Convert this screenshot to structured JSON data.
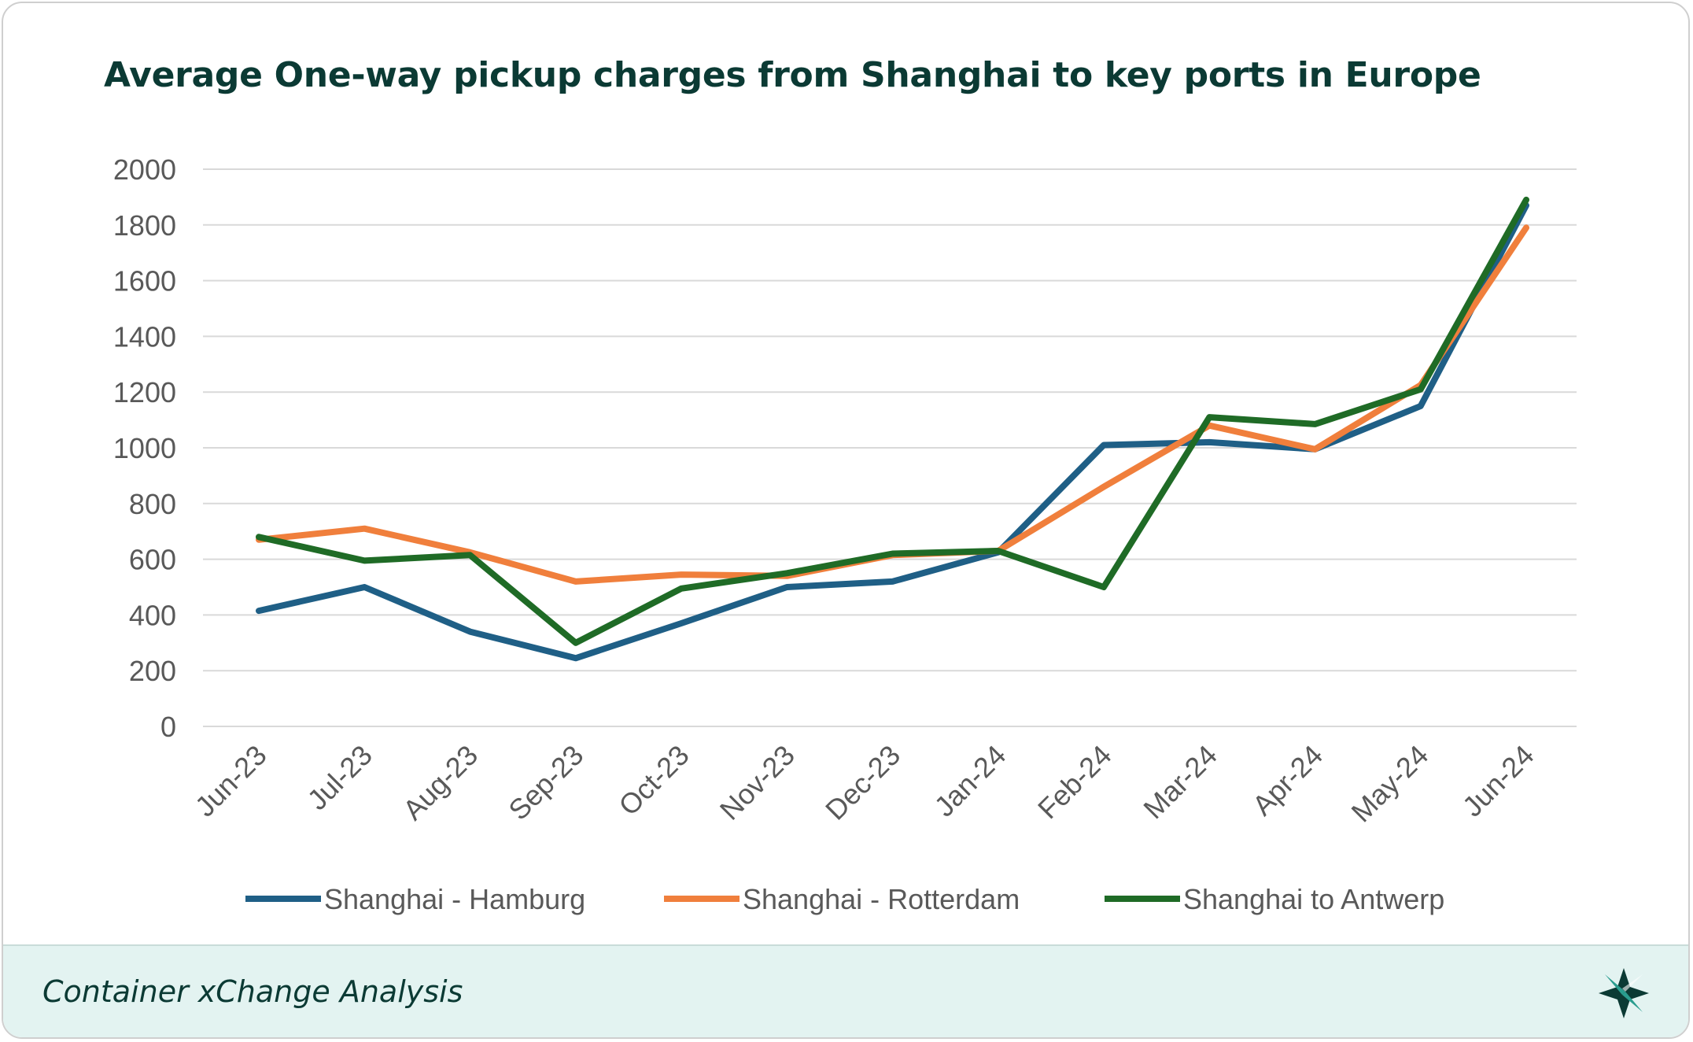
{
  "title": "Average One-way pickup charges from Shanghai to key ports in Europe",
  "footer": {
    "text": "Container xChange Analysis",
    "logo_icon": "xchange-logo-icon"
  },
  "colors": {
    "hamburg": "#1f5f86",
    "rotterdam": "#f07f3c",
    "antwerp": "#1f6b26",
    "title": "#0b3a34",
    "grid": "#d9d9d9",
    "tick_text": "#595959"
  },
  "chart_data": {
    "type": "line",
    "title": "Average One-way pickup charges from Shanghai to key ports in Europe",
    "xlabel": "",
    "ylabel": "",
    "ylim": [
      0,
      2000
    ],
    "yticks": [
      0,
      200,
      400,
      600,
      800,
      1000,
      1200,
      1400,
      1600,
      1800,
      2000
    ],
    "grid": true,
    "legend_position": "bottom",
    "categories": [
      "Jun-23",
      "Jul-23",
      "Aug-23",
      "Sep-23",
      "Oct-23",
      "Nov-23",
      "Dec-23",
      "Jan-24",
      "Feb-24",
      "Mar-24",
      "Apr-24",
      "May-24",
      "Jun-24"
    ],
    "series": [
      {
        "name": "Shanghai - Hamburg",
        "color": "#1f5f86",
        "values": [
          415,
          500,
          340,
          245,
          370,
          500,
          520,
          625,
          1010,
          1020,
          995,
          1150,
          1870
        ]
      },
      {
        "name": "Shanghai - Rotterdam",
        "color": "#f07f3c",
        "values": [
          670,
          710,
          625,
          520,
          545,
          540,
          615,
          630,
          860,
          1080,
          995,
          1225,
          1790
        ]
      },
      {
        "name": "Shanghai to Antwerp",
        "color": "#1f6b26",
        "values": [
          680,
          595,
          615,
          300,
          495,
          550,
          620,
          630,
          500,
          1110,
          1085,
          1210,
          1890
        ]
      }
    ]
  }
}
